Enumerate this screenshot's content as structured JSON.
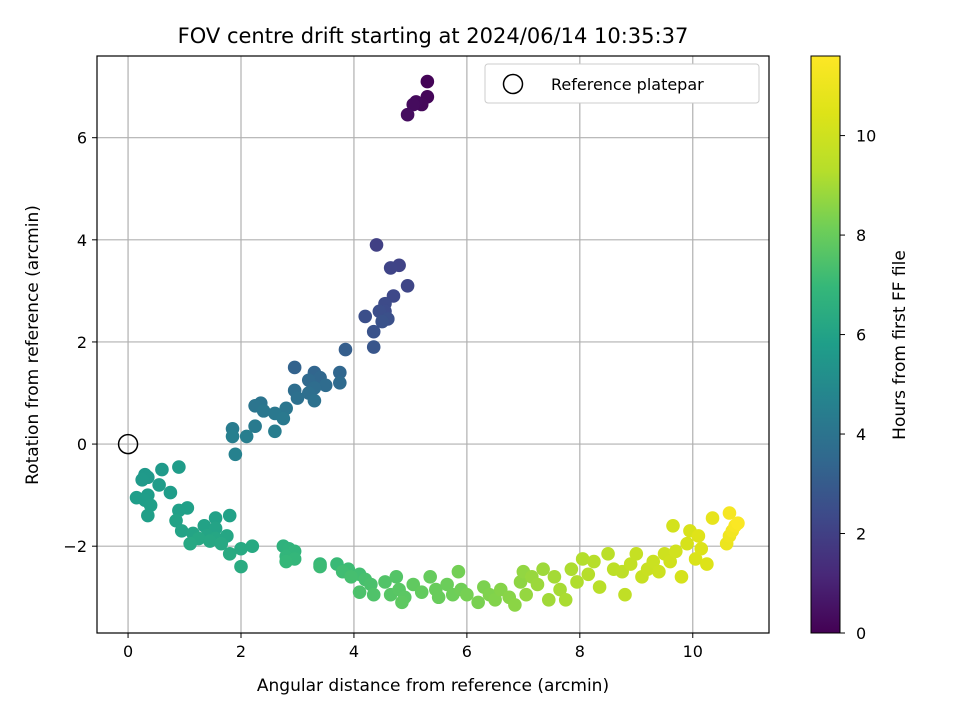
{
  "chart_data": {
    "type": "scatter",
    "title": "FOV centre drift starting at 2024/06/14 10:35:37",
    "xlabel": "Angular distance from reference (arcmin)",
    "ylabel": "Rotation from reference (arcmin)",
    "xlim": [
      -0.55,
      11.35
    ],
    "ylim": [
      -3.7,
      7.6
    ],
    "x_ticks": [
      0,
      2,
      4,
      6,
      8,
      10
    ],
    "y_ticks": [
      -2,
      0,
      2,
      4,
      6
    ],
    "x_tick_labels": [
      "0",
      "2",
      "4",
      "6",
      "8",
      "10"
    ],
    "y_tick_labels": [
      "−2",
      "0",
      "2",
      "4",
      "6"
    ],
    "grid": true,
    "colormap": "viridis",
    "colorbar": {
      "label": "Hours from first FF file",
      "range": [
        0,
        11.6
      ],
      "ticks": [
        0,
        2,
        4,
        6,
        8,
        10
      ],
      "tick_labels": [
        "0",
        "2",
        "4",
        "6",
        "8",
        "10"
      ]
    },
    "legend": {
      "location": "upper right",
      "entry": "Reference platepar"
    },
    "reference": {
      "x": 0,
      "y": 0
    },
    "points": [
      {
        "x": 5.3,
        "y": 7.1,
        "c": 0.1
      },
      {
        "x": 5.3,
        "y": 6.8,
        "c": 0.15
      },
      {
        "x": 5.2,
        "y": 6.65,
        "c": 0.2
      },
      {
        "x": 5.1,
        "y": 6.7,
        "c": 0.25
      },
      {
        "x": 5.05,
        "y": 6.65,
        "c": 0.3
      },
      {
        "x": 4.95,
        "y": 6.45,
        "c": 0.35
      },
      {
        "x": 4.4,
        "y": 3.9,
        "c": 2.0
      },
      {
        "x": 4.8,
        "y": 3.5,
        "c": 2.1
      },
      {
        "x": 4.65,
        "y": 3.45,
        "c": 2.15
      },
      {
        "x": 4.95,
        "y": 3.1,
        "c": 2.2
      },
      {
        "x": 4.7,
        "y": 2.9,
        "c": 2.3
      },
      {
        "x": 4.55,
        "y": 2.75,
        "c": 2.4
      },
      {
        "x": 4.55,
        "y": 2.6,
        "c": 2.45
      },
      {
        "x": 4.45,
        "y": 2.6,
        "c": 2.5
      },
      {
        "x": 4.2,
        "y": 2.5,
        "c": 2.55
      },
      {
        "x": 4.6,
        "y": 2.45,
        "c": 2.6
      },
      {
        "x": 4.5,
        "y": 2.4,
        "c": 2.65
      },
      {
        "x": 4.35,
        "y": 2.2,
        "c": 2.7
      },
      {
        "x": 4.35,
        "y": 1.9,
        "c": 2.8
      },
      {
        "x": 3.85,
        "y": 1.85,
        "c": 3.1
      },
      {
        "x": 2.95,
        "y": 1.5,
        "c": 3.3
      },
      {
        "x": 3.3,
        "y": 1.4,
        "c": 3.4
      },
      {
        "x": 3.75,
        "y": 1.4,
        "c": 3.45
      },
      {
        "x": 3.4,
        "y": 1.3,
        "c": 3.5
      },
      {
        "x": 3.2,
        "y": 1.25,
        "c": 3.55
      },
      {
        "x": 3.75,
        "y": 1.2,
        "c": 3.6
      },
      {
        "x": 3.5,
        "y": 1.15,
        "c": 3.65
      },
      {
        "x": 3.3,
        "y": 1.1,
        "c": 3.7
      },
      {
        "x": 2.95,
        "y": 1.05,
        "c": 3.75
      },
      {
        "x": 3.2,
        "y": 1.0,
        "c": 3.8
      },
      {
        "x": 3.0,
        "y": 0.9,
        "c": 3.85
      },
      {
        "x": 3.3,
        "y": 0.85,
        "c": 3.9
      },
      {
        "x": 2.35,
        "y": 0.8,
        "c": 4.0
      },
      {
        "x": 2.25,
        "y": 0.75,
        "c": 4.05
      },
      {
        "x": 2.8,
        "y": 0.7,
        "c": 4.1
      },
      {
        "x": 2.4,
        "y": 0.65,
        "c": 4.15
      },
      {
        "x": 2.6,
        "y": 0.6,
        "c": 4.2
      },
      {
        "x": 2.75,
        "y": 0.5,
        "c": 4.25
      },
      {
        "x": 2.25,
        "y": 0.35,
        "c": 4.3
      },
      {
        "x": 1.85,
        "y": 0.3,
        "c": 4.35
      },
      {
        "x": 2.6,
        "y": 0.25,
        "c": 4.4
      },
      {
        "x": 2.1,
        "y": 0.15,
        "c": 4.45
      },
      {
        "x": 1.85,
        "y": 0.15,
        "c": 4.5
      },
      {
        "x": 1.9,
        "y": -0.2,
        "c": 4.6
      },
      {
        "x": 0.3,
        "y": -0.6,
        "c": 5.6
      },
      {
        "x": 0.35,
        "y": -0.65,
        "c": 5.6
      },
      {
        "x": 0.25,
        "y": -0.7,
        "c": 5.65
      },
      {
        "x": 0.6,
        "y": -0.5,
        "c": 5.65
      },
      {
        "x": 0.9,
        "y": -0.45,
        "c": 5.7
      },
      {
        "x": 0.55,
        "y": -0.8,
        "c": 5.7
      },
      {
        "x": 0.75,
        "y": -0.95,
        "c": 5.75
      },
      {
        "x": 0.35,
        "y": -1.0,
        "c": 5.75
      },
      {
        "x": 0.15,
        "y": -1.05,
        "c": 5.8
      },
      {
        "x": 0.3,
        "y": -1.1,
        "c": 5.8
      },
      {
        "x": 0.4,
        "y": -1.2,
        "c": 5.85
      },
      {
        "x": 0.35,
        "y": -1.4,
        "c": 5.85
      },
      {
        "x": 1.05,
        "y": -1.25,
        "c": 5.9
      },
      {
        "x": 0.9,
        "y": -1.3,
        "c": 5.9
      },
      {
        "x": 1.55,
        "y": -1.45,
        "c": 5.95
      },
      {
        "x": 1.8,
        "y": -1.4,
        "c": 5.95
      },
      {
        "x": 0.85,
        "y": -1.5,
        "c": 6.0
      },
      {
        "x": 1.35,
        "y": -1.6,
        "c": 6.0
      },
      {
        "x": 1.55,
        "y": -1.65,
        "c": 6.05
      },
      {
        "x": 0.95,
        "y": -1.7,
        "c": 6.05
      },
      {
        "x": 1.15,
        "y": -1.75,
        "c": 6.1
      },
      {
        "x": 1.4,
        "y": -1.8,
        "c": 6.1
      },
      {
        "x": 1.55,
        "y": -1.85,
        "c": 6.15
      },
      {
        "x": 1.75,
        "y": -1.8,
        "c": 6.15
      },
      {
        "x": 1.25,
        "y": -1.85,
        "c": 6.2
      },
      {
        "x": 1.45,
        "y": -1.9,
        "c": 6.2
      },
      {
        "x": 1.65,
        "y": -1.95,
        "c": 6.25
      },
      {
        "x": 1.1,
        "y": -1.95,
        "c": 6.25
      },
      {
        "x": 2.2,
        "y": -2.0,
        "c": 6.3
      },
      {
        "x": 2.0,
        "y": -2.05,
        "c": 6.3
      },
      {
        "x": 1.8,
        "y": -2.15,
        "c": 6.35
      },
      {
        "x": 2.0,
        "y": -2.4,
        "c": 6.4
      },
      {
        "x": 2.75,
        "y": -2.0,
        "c": 6.7
      },
      {
        "x": 2.85,
        "y": -2.05,
        "c": 6.75
      },
      {
        "x": 2.95,
        "y": -2.1,
        "c": 6.8
      },
      {
        "x": 2.8,
        "y": -2.2,
        "c": 6.85
      },
      {
        "x": 2.95,
        "y": -2.25,
        "c": 6.9
      },
      {
        "x": 2.8,
        "y": -2.3,
        "c": 6.95
      },
      {
        "x": 3.4,
        "y": -2.35,
        "c": 7.0
      },
      {
        "x": 3.7,
        "y": -2.35,
        "c": 7.05
      },
      {
        "x": 3.4,
        "y": -2.4,
        "c": 7.1
      },
      {
        "x": 3.9,
        "y": -2.45,
        "c": 7.15
      },
      {
        "x": 3.8,
        "y": -2.5,
        "c": 7.2
      },
      {
        "x": 4.1,
        "y": -2.55,
        "c": 7.25
      },
      {
        "x": 3.95,
        "y": -2.6,
        "c": 7.3
      },
      {
        "x": 4.2,
        "y": -2.65,
        "c": 7.35
      },
      {
        "x": 4.3,
        "y": -2.75,
        "c": 7.4
      },
      {
        "x": 4.1,
        "y": -2.9,
        "c": 7.45
      },
      {
        "x": 4.35,
        "y": -2.95,
        "c": 7.5
      },
      {
        "x": 4.55,
        "y": -2.7,
        "c": 7.55
      },
      {
        "x": 4.75,
        "y": -2.6,
        "c": 7.6
      },
      {
        "x": 4.65,
        "y": -2.95,
        "c": 7.65
      },
      {
        "x": 4.8,
        "y": -2.85,
        "c": 7.7
      },
      {
        "x": 4.9,
        "y": -3.0,
        "c": 7.75
      },
      {
        "x": 4.85,
        "y": -3.1,
        "c": 7.8
      },
      {
        "x": 5.05,
        "y": -2.75,
        "c": 7.85
      },
      {
        "x": 5.2,
        "y": -2.9,
        "c": 7.9
      },
      {
        "x": 5.35,
        "y": -2.6,
        "c": 7.95
      },
      {
        "x": 5.45,
        "y": -2.85,
        "c": 8.0
      },
      {
        "x": 5.5,
        "y": -3.0,
        "c": 8.0
      },
      {
        "x": 5.65,
        "y": -2.75,
        "c": 8.05
      },
      {
        "x": 5.75,
        "y": -2.95,
        "c": 8.1
      },
      {
        "x": 5.9,
        "y": -2.85,
        "c": 8.15
      },
      {
        "x": 5.85,
        "y": -2.5,
        "c": 8.2
      },
      {
        "x": 6.0,
        "y": -2.95,
        "c": 8.25
      },
      {
        "x": 6.2,
        "y": -3.1,
        "c": 8.3
      },
      {
        "x": 6.3,
        "y": -2.8,
        "c": 8.35
      },
      {
        "x": 6.4,
        "y": -2.95,
        "c": 8.4
      },
      {
        "x": 6.5,
        "y": -3.05,
        "c": 8.45
      },
      {
        "x": 6.6,
        "y": -2.85,
        "c": 8.5
      },
      {
        "x": 6.75,
        "y": -3.0,
        "c": 8.55
      },
      {
        "x": 6.85,
        "y": -3.15,
        "c": 8.6
      },
      {
        "x": 6.95,
        "y": -2.7,
        "c": 8.65
      },
      {
        "x": 7.0,
        "y": -2.5,
        "c": 8.7
      },
      {
        "x": 7.05,
        "y": -2.95,
        "c": 8.75
      },
      {
        "x": 7.15,
        "y": -2.6,
        "c": 8.8
      },
      {
        "x": 7.25,
        "y": -2.75,
        "c": 8.85
      },
      {
        "x": 7.35,
        "y": -2.45,
        "c": 8.9
      },
      {
        "x": 7.45,
        "y": -3.05,
        "c": 8.95
      },
      {
        "x": 7.55,
        "y": -2.6,
        "c": 9.0
      },
      {
        "x": 7.65,
        "y": -2.85,
        "c": 9.05
      },
      {
        "x": 7.75,
        "y": -3.05,
        "c": 9.1
      },
      {
        "x": 7.85,
        "y": -2.45,
        "c": 9.15
      },
      {
        "x": 7.95,
        "y": -2.7,
        "c": 9.2
      },
      {
        "x": 8.05,
        "y": -2.25,
        "c": 9.25
      },
      {
        "x": 8.15,
        "y": -2.55,
        "c": 9.3
      },
      {
        "x": 8.25,
        "y": -2.3,
        "c": 9.35
      },
      {
        "x": 8.35,
        "y": -2.8,
        "c": 9.4
      },
      {
        "x": 8.5,
        "y": -2.15,
        "c": 9.45
      },
      {
        "x": 8.6,
        "y": -2.45,
        "c": 9.5
      },
      {
        "x": 8.75,
        "y": -2.5,
        "c": 9.55
      },
      {
        "x": 8.8,
        "y": -2.95,
        "c": 9.6
      },
      {
        "x": 8.9,
        "y": -2.35,
        "c": 9.7
      },
      {
        "x": 9.0,
        "y": -2.15,
        "c": 9.75
      },
      {
        "x": 9.1,
        "y": -2.6,
        "c": 9.8
      },
      {
        "x": 9.2,
        "y": -2.45,
        "c": 9.85
      },
      {
        "x": 9.3,
        "y": -2.3,
        "c": 9.9
      },
      {
        "x": 9.4,
        "y": -2.5,
        "c": 9.95
      },
      {
        "x": 9.5,
        "y": -2.15,
        "c": 10.0
      },
      {
        "x": 9.6,
        "y": -2.3,
        "c": 10.05
      },
      {
        "x": 9.7,
        "y": -2.1,
        "c": 10.1
      },
      {
        "x": 9.65,
        "y": -1.6,
        "c": 10.15
      },
      {
        "x": 9.8,
        "y": -2.6,
        "c": 10.2
      },
      {
        "x": 9.9,
        "y": -1.95,
        "c": 10.25
      },
      {
        "x": 9.95,
        "y": -1.7,
        "c": 10.3
      },
      {
        "x": 10.05,
        "y": -2.25,
        "c": 10.35
      },
      {
        "x": 10.15,
        "y": -2.05,
        "c": 10.4
      },
      {
        "x": 10.25,
        "y": -2.35,
        "c": 10.45
      },
      {
        "x": 10.1,
        "y": -1.8,
        "c": 10.5
      },
      {
        "x": 10.35,
        "y": -1.45,
        "c": 10.8
      },
      {
        "x": 10.6,
        "y": -1.95,
        "c": 11.0
      },
      {
        "x": 10.65,
        "y": -1.8,
        "c": 11.1
      },
      {
        "x": 10.7,
        "y": -1.7,
        "c": 11.2
      },
      {
        "x": 10.65,
        "y": -1.35,
        "c": 11.3
      },
      {
        "x": 10.75,
        "y": -1.6,
        "c": 11.4
      },
      {
        "x": 10.8,
        "y": -1.55,
        "c": 11.5
      }
    ]
  }
}
